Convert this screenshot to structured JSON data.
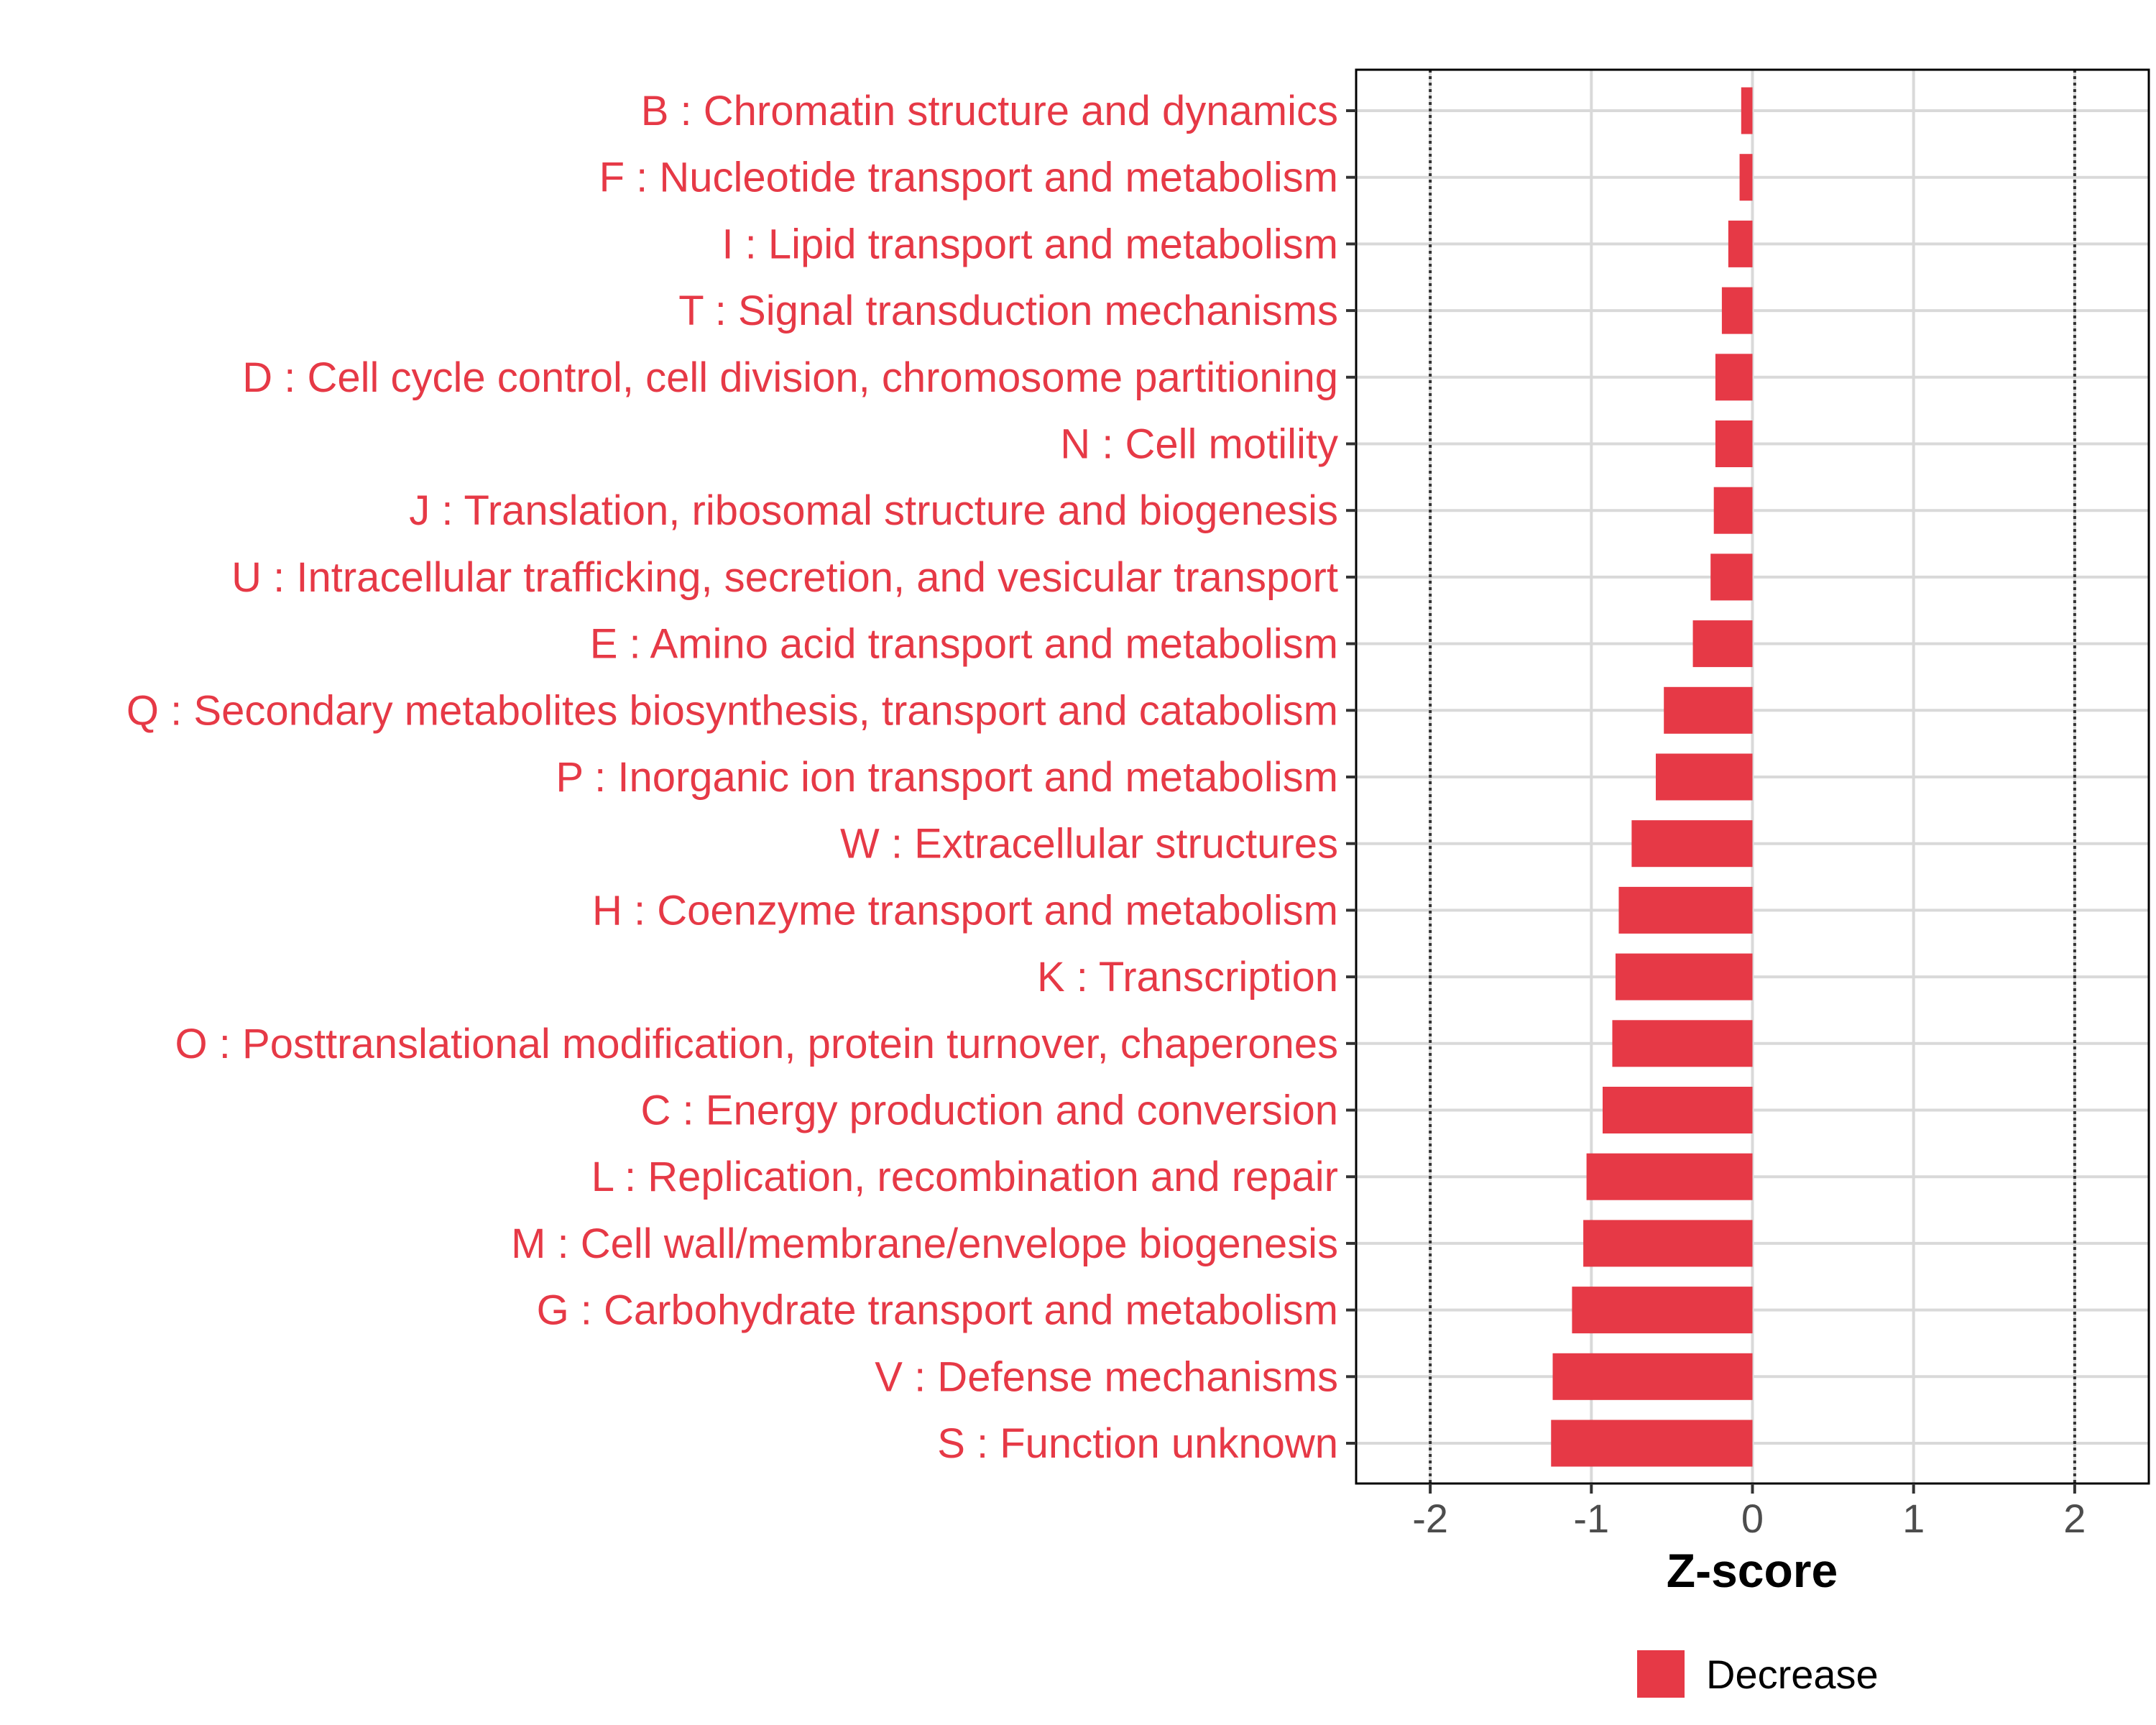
{
  "chart_data": {
    "type": "bar",
    "orientation": "horizontal",
    "categories": [
      "B : Chromatin structure and dynamics",
      "F : Nucleotide transport and metabolism",
      "I : Lipid transport and metabolism",
      "T : Signal transduction mechanisms",
      "D : Cell cycle control, cell division, chromosome partitioning",
      "N : Cell motility",
      "J : Translation, ribosomal structure and biogenesis",
      "U : Intracellular trafficking, secretion, and vesicular transport",
      "E : Amino acid transport and metabolism",
      "Q : Secondary metabolites biosynthesis, transport and catabolism",
      "P : Inorganic ion transport and metabolism",
      "W : Extracellular structures",
      "H : Coenzyme transport and metabolism",
      "K : Transcription",
      "O : Posttranslational modification, protein turnover, chaperones",
      "C : Energy production and conversion",
      "L : Replication, recombination and repair",
      "M : Cell wall/membrane/envelope biogenesis",
      "G : Carbohydrate transport and metabolism",
      "V : Defense mechanisms",
      "S : Function unknown"
    ],
    "values": [
      -0.07,
      -0.08,
      -0.15,
      -0.19,
      -0.23,
      -0.23,
      -0.24,
      -0.26,
      -0.37,
      -0.55,
      -0.6,
      -0.75,
      -0.83,
      -0.85,
      -0.87,
      -0.93,
      -1.03,
      -1.05,
      -1.12,
      -1.24,
      -1.25
    ],
    "xlabel": "Z-score",
    "ylabel": "",
    "xlim": [
      -2.46,
      2.46
    ],
    "xticks": [
      -2,
      -1,
      0,
      1,
      2
    ],
    "xtick_labels": [
      "-2",
      "-1",
      "0",
      "1",
      "2"
    ],
    "reference_lines": [
      -2,
      2
    ],
    "grid": true,
    "legend": {
      "position": "bottom",
      "entries": [
        {
          "label": "Decrease",
          "color": "#E63946"
        }
      ]
    },
    "colors": {
      "bar": "#E63946",
      "label": "#E63946",
      "grid": "#d9d9d9",
      "border": "#000000"
    }
  }
}
